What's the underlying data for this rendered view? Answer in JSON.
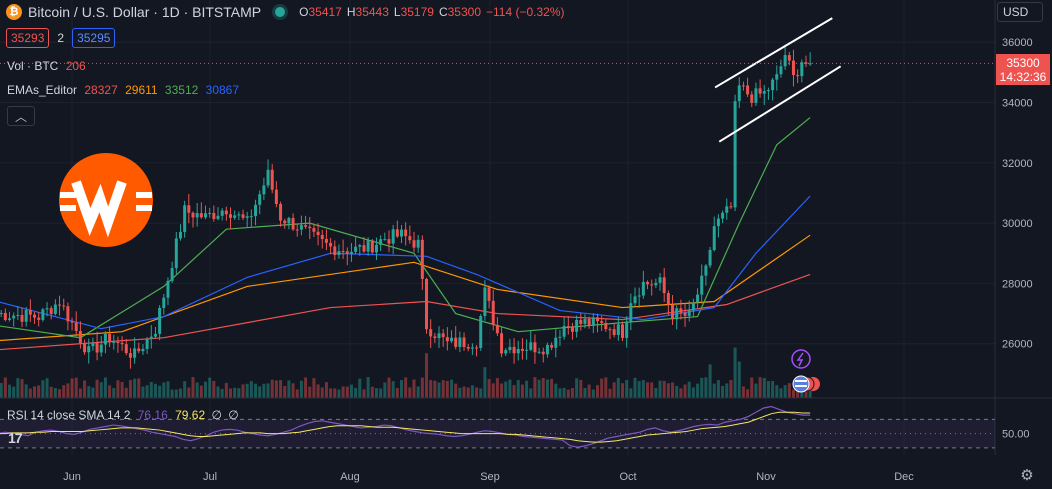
{
  "header": {
    "symbol_text": "Bitcoin / U.S. Dollar · 1D · BITSTAMP",
    "coin_glyph": "₿",
    "ohlc": {
      "o_label": "O",
      "o": "35417",
      "h_label": "H",
      "h": "35443",
      "l_label": "L",
      "l": "35179",
      "c_label": "C",
      "c": "35300",
      "change": "−114 (−0.32%)"
    }
  },
  "trade": {
    "sell_price": "35293",
    "spread": "2",
    "buy_price": "35295"
  },
  "volume": {
    "label": "Vol · BTC",
    "value": "206"
  },
  "emas": {
    "label": "EMAs_Editor",
    "values": [
      "28327",
      "29611",
      "33512",
      "30867"
    ],
    "colors": [
      "#ef5350",
      "#ff9800",
      "#4caf50",
      "#2962ff"
    ]
  },
  "collapse_glyph": "︿",
  "currency": "USD",
  "price_label": {
    "price": "35300",
    "countdown": "14:32:36"
  },
  "rsi": {
    "label": "RSI 14 close SMA 14 2",
    "value_a": "76.16",
    "value_b": "79.62",
    "nan_a": "∅",
    "nan_b": "∅",
    "level": "50.00"
  },
  "gear_glyph": "⚙",
  "tv_logo": "17",
  "colors": {
    "up": "#26a69a",
    "down": "#ef5350",
    "background": "#131722",
    "grid": "#1e222d",
    "text": "#b2b5be"
  },
  "chart_data": {
    "type": "candlestick",
    "x_labels": [
      "Jun",
      "Jul",
      "Aug",
      "Sep",
      "Oct",
      "Nov",
      "Dec"
    ],
    "y_ticks": [
      26000,
      28000,
      30000,
      32000,
      34000,
      36000
    ],
    "ylim": [
      24200,
      37400
    ],
    "current_price": 35300,
    "keypoints": [
      {
        "i": 0,
        "p": 27000
      },
      {
        "i": 10,
        "p": 26900
      },
      {
        "i": 15,
        "p": 27400
      },
      {
        "i": 22,
        "p": 25700
      },
      {
        "i": 27,
        "p": 26200
      },
      {
        "i": 33,
        "p": 25600
      },
      {
        "i": 38,
        "p": 26500
      },
      {
        "i": 40,
        "p": 27600
      },
      {
        "i": 45,
        "p": 30400
      },
      {
        "i": 50,
        "p": 30200
      },
      {
        "i": 55,
        "p": 30500
      },
      {
        "i": 60,
        "p": 30000
      },
      {
        "i": 65,
        "p": 31600
      },
      {
        "i": 68,
        "p": 30200
      },
      {
        "i": 72,
        "p": 29900
      },
      {
        "i": 76,
        "p": 29500
      },
      {
        "i": 80,
        "p": 29200
      },
      {
        "i": 85,
        "p": 29100
      },
      {
        "i": 89,
        "p": 29200
      },
      {
        "i": 93,
        "p": 29500
      },
      {
        "i": 97,
        "p": 29600
      },
      {
        "i": 101,
        "p": 29300
      },
      {
        "i": 103,
        "p": 26600
      },
      {
        "i": 108,
        "p": 26000
      },
      {
        "i": 115,
        "p": 26100
      },
      {
        "i": 117,
        "p": 27700
      },
      {
        "i": 121,
        "p": 25900
      },
      {
        "i": 127,
        "p": 25900
      },
      {
        "i": 132,
        "p": 25900
      },
      {
        "i": 136,
        "p": 26600
      },
      {
        "i": 141,
        "p": 26700
      },
      {
        "i": 146,
        "p": 26600
      },
      {
        "i": 150,
        "p": 26400
      },
      {
        "i": 152,
        "p": 27500
      },
      {
        "i": 155,
        "p": 28000
      },
      {
        "i": 159,
        "p": 28000
      },
      {
        "i": 162,
        "p": 27000
      },
      {
        "i": 166,
        "p": 26900
      },
      {
        "i": 170,
        "p": 28400
      },
      {
        "i": 172,
        "p": 29900
      },
      {
        "i": 176,
        "p": 30500
      },
      {
        "i": 177,
        "p": 33800
      },
      {
        "i": 178,
        "p": 34500
      },
      {
        "i": 181,
        "p": 34200
      },
      {
        "i": 184,
        "p": 34300
      },
      {
        "i": 187,
        "p": 34800
      },
      {
        "i": 189,
        "p": 35600
      },
      {
        "i": 191,
        "p": 34800
      },
      {
        "i": 193,
        "p": 35400
      },
      {
        "i": 194,
        "p": 35300
      }
    ],
    "volume_spikes": [
      {
        "i": 103,
        "v": 3.2
      },
      {
        "i": 117,
        "v": 2.2
      },
      {
        "i": 171,
        "v": 2.4
      },
      {
        "i": 177,
        "v": 3.6
      },
      {
        "i": 178,
        "v": 2.6
      }
    ],
    "ema_lines": [
      {
        "color": "#ef5350",
        "points": [
          [
            0,
            25800
          ],
          [
            40,
            26200
          ],
          [
            80,
            27200
          ],
          [
            103,
            27400
          ],
          [
            120,
            27000
          ],
          [
            150,
            26800
          ],
          [
            175,
            27300
          ],
          [
            195,
            28300
          ]
        ]
      },
      {
        "color": "#ff9800",
        "points": [
          [
            0,
            26100
          ],
          [
            30,
            26400
          ],
          [
            60,
            27900
          ],
          [
            100,
            28700
          ],
          [
            120,
            27800
          ],
          [
            150,
            27200
          ],
          [
            172,
            27400
          ],
          [
            195,
            29600
          ]
        ]
      },
      {
        "color": "#4caf50",
        "points": [
          [
            0,
            26600
          ],
          [
            20,
            26200
          ],
          [
            40,
            27900
          ],
          [
            55,
            29800
          ],
          [
            75,
            30000
          ],
          [
            100,
            29000
          ],
          [
            110,
            27000
          ],
          [
            125,
            26400
          ],
          [
            150,
            26700
          ],
          [
            168,
            26900
          ],
          [
            178,
            30000
          ],
          [
            187,
            32600
          ],
          [
            195,
            33500
          ]
        ]
      },
      {
        "color": "#2962ff",
        "points": [
          [
            0,
            27400
          ],
          [
            25,
            26500
          ],
          [
            40,
            26900
          ],
          [
            60,
            28200
          ],
          [
            80,
            29000
          ],
          [
            103,
            28900
          ],
          [
            115,
            28300
          ],
          [
            135,
            27100
          ],
          [
            155,
            26800
          ],
          [
            172,
            27200
          ],
          [
            182,
            29000
          ],
          [
            195,
            30900
          ]
        ]
      }
    ],
    "channel": [
      {
        "a": [
          177,
          34500
        ],
        "b": [
          196,
          36800
        ]
      },
      {
        "a": [
          178,
          32700
        ],
        "b": [
          198,
          35200
        ]
      }
    ],
    "rsi_series": [
      50,
      52,
      51,
      49,
      47,
      52,
      54,
      55,
      53,
      50,
      49,
      52,
      56,
      58,
      60,
      62,
      61,
      59,
      57,
      55,
      52,
      50,
      48,
      46,
      42,
      40,
      43,
      47,
      52,
      55,
      56,
      55,
      52,
      50,
      48,
      47,
      49,
      52,
      55,
      60,
      64,
      67,
      68,
      66,
      64,
      62,
      60,
      58,
      59,
      60,
      62,
      61,
      58,
      55,
      53,
      51,
      50,
      49,
      47,
      46,
      47,
      49,
      52,
      54,
      53,
      51,
      49,
      48,
      46,
      45,
      44,
      43,
      42,
      41,
      33,
      31,
      33,
      36,
      40,
      44,
      46,
      48,
      50,
      52,
      56,
      58,
      54,
      52,
      54,
      57,
      60,
      62,
      63,
      62,
      66,
      68,
      70,
      74,
      80,
      86,
      88,
      84,
      80,
      78,
      76,
      76
    ],
    "rsi_sma": [
      50,
      50,
      51,
      51,
      51,
      52,
      52,
      53,
      53,
      53,
      53,
      53,
      54,
      55,
      56,
      57,
      58,
      58,
      58,
      57,
      56,
      55,
      53,
      51,
      49,
      47,
      46,
      46,
      47,
      48,
      49,
      50,
      51,
      51,
      51,
      50,
      50,
      50,
      51,
      52,
      54,
      56,
      58,
      60,
      61,
      61,
      61,
      61,
      60,
      59,
      59,
      59,
      58,
      57,
      56,
      55,
      54,
      53,
      52,
      51,
      50,
      50,
      50,
      50,
      50,
      50,
      49,
      49,
      48,
      47,
      46,
      45,
      44,
      43,
      42,
      40,
      39,
      38,
      38,
      39,
      40,
      42,
      44,
      46,
      48,
      49,
      50,
      51,
      52,
      53,
      55,
      57,
      58,
      59,
      60,
      62,
      64,
      66,
      70,
      74,
      78,
      80,
      80,
      80,
      79,
      79
    ]
  }
}
